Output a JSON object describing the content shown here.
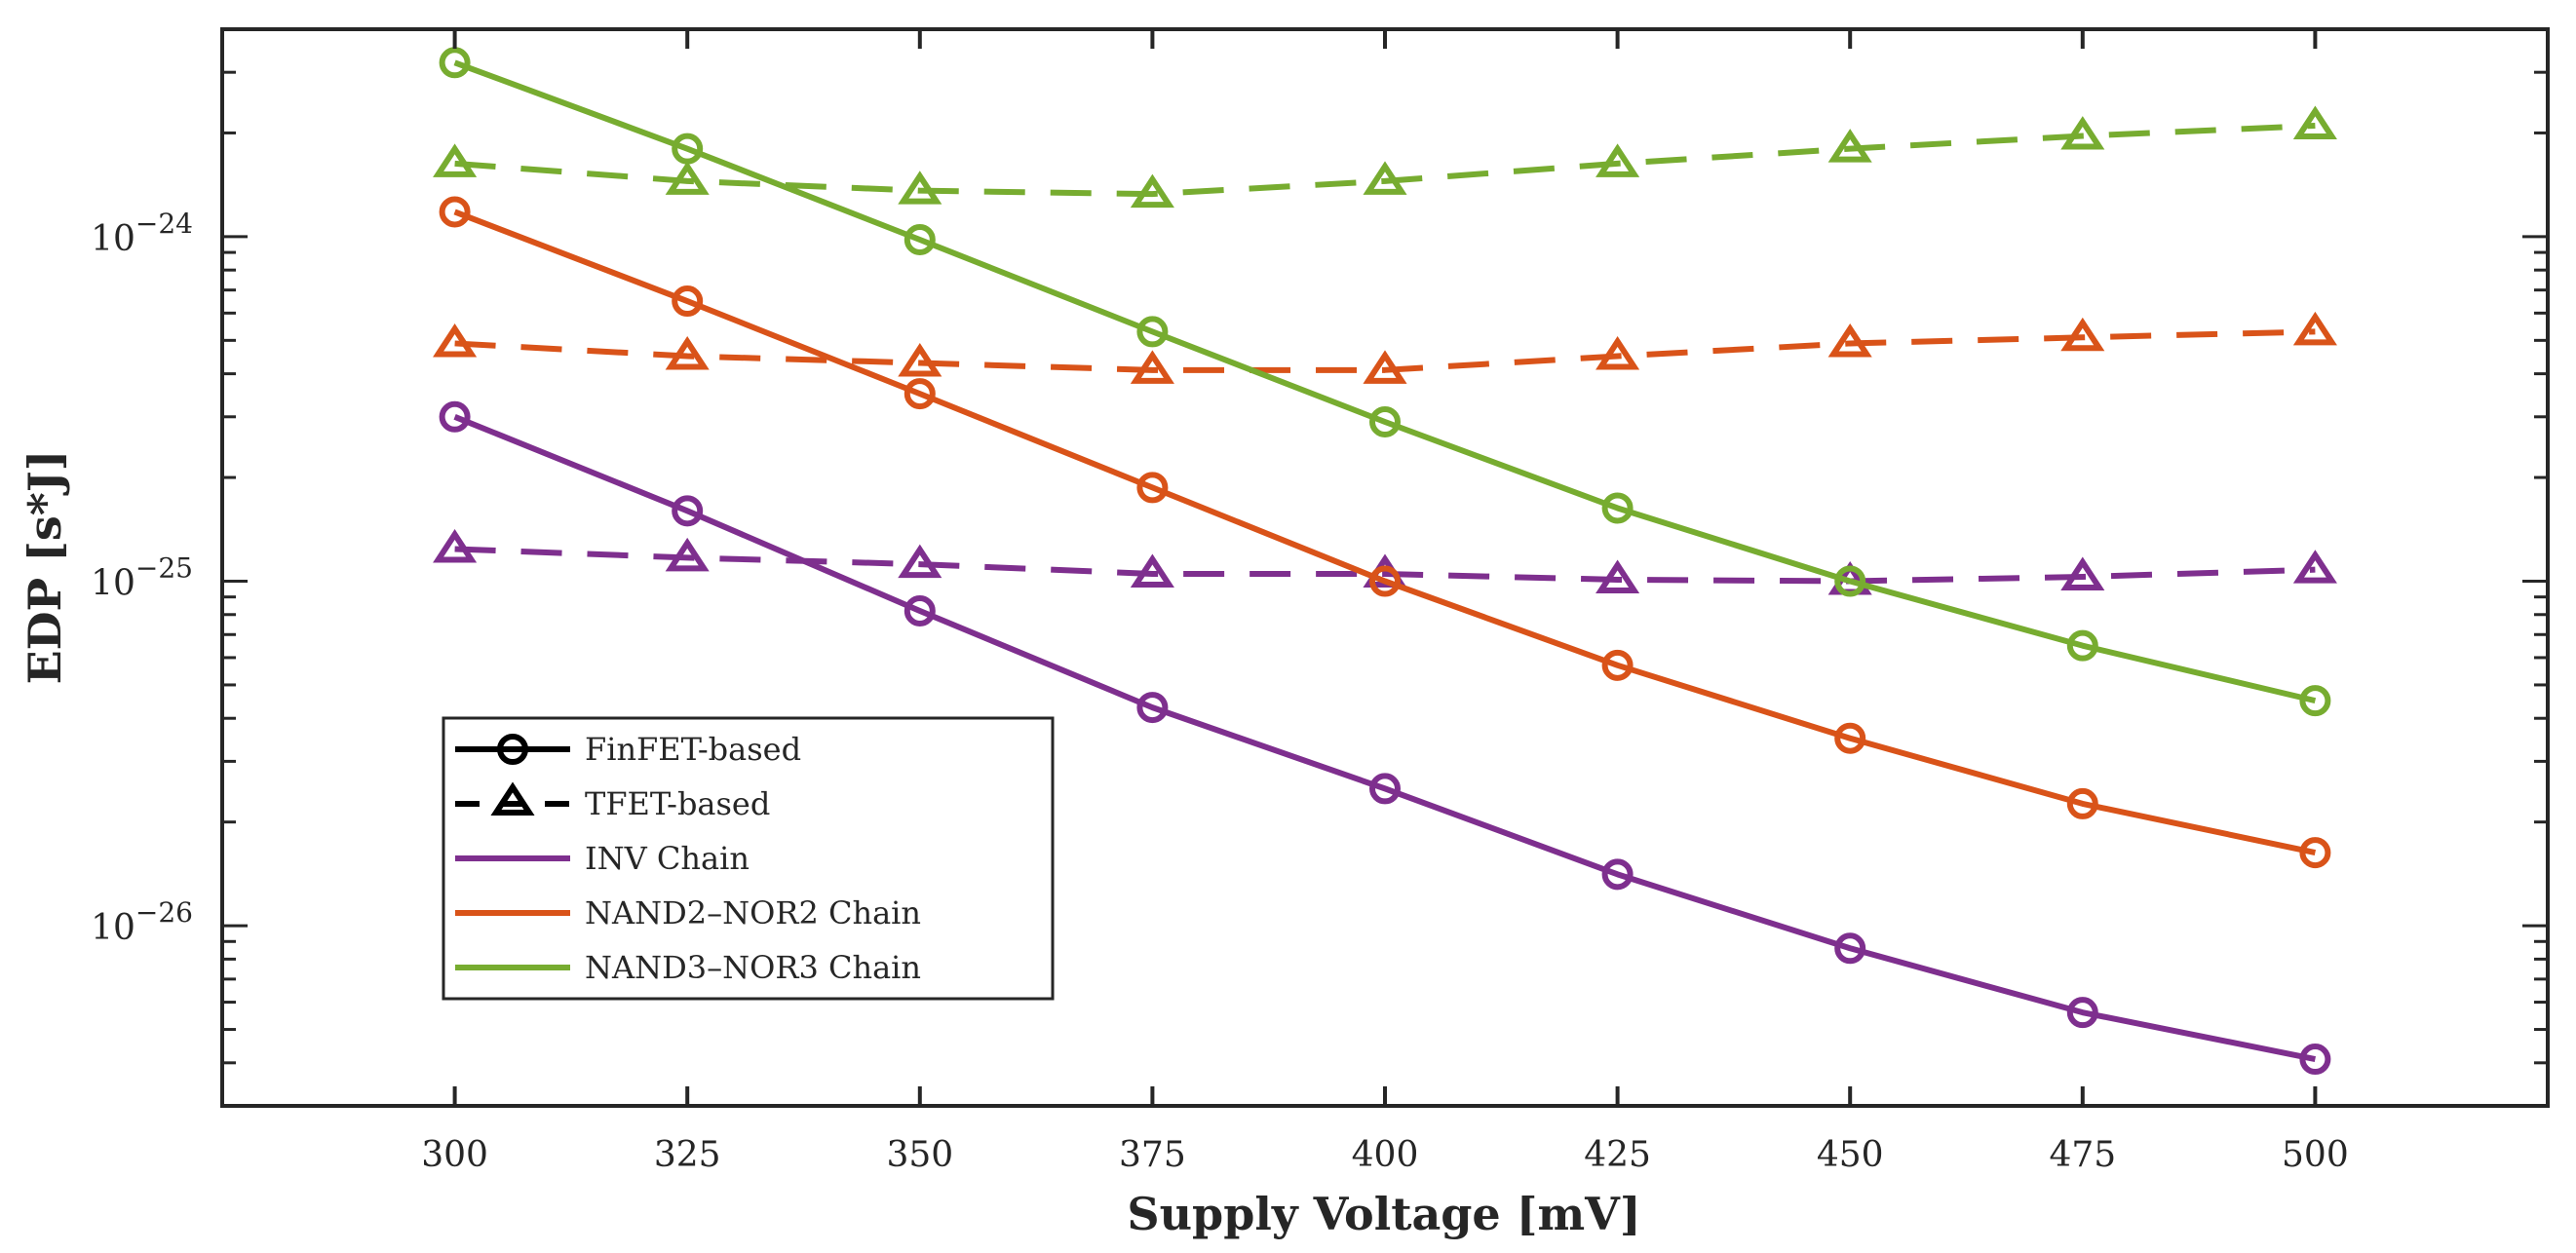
{
  "chart_data": {
    "type": "line",
    "title": "",
    "xlabel": "Supply Voltage [mV]",
    "ylabel": "EDP [s*J]",
    "xlim": [
      275,
      525
    ],
    "ylim": [
      3e-27,
      4e-24
    ],
    "yscale": "log",
    "grid": false,
    "legend_placement": "bottom-left",
    "x": [
      300,
      325,
      350,
      375,
      400,
      425,
      450,
      475,
      500
    ],
    "x_tick_labels": [
      "300",
      "325",
      "350",
      "375",
      "400",
      "425",
      "450",
      "475",
      "500"
    ],
    "y_ticks": [
      1e-24,
      1e-25,
      1e-26
    ],
    "y_tick_base": "10",
    "y_tick_exponents": [
      "−24",
      "−25",
      "−26"
    ],
    "legend": [
      {
        "label": "FinFET-based",
        "style": "solid",
        "marker": "circle",
        "color": "#000000"
      },
      {
        "label": "TFET-based",
        "style": "dashed",
        "marker": "triangle",
        "color": "#000000"
      },
      {
        "label": "INV Chain",
        "style": "solid",
        "marker": "none",
        "color": "#7E2F8E"
      },
      {
        "label": "NAND2–NOR2 Chain",
        "style": "solid",
        "marker": "none",
        "color": "#D95319"
      },
      {
        "label": "NAND3–NOR3 Chain",
        "style": "solid",
        "marker": "none",
        "color": "#77AC30"
      }
    ],
    "series": [
      {
        "name": "INV Chain FinFET-based",
        "color": "#7E2F8E",
        "style": "solid",
        "marker": "circle",
        "values": [
          3e-25,
          1.6e-25,
          8.2e-26,
          4.3e-26,
          2.5e-26,
          1.41e-26,
          8.6e-27,
          5.6e-27,
          4.1e-27
        ]
      },
      {
        "name": "NAND2–NOR2 Chain FinFET-based",
        "color": "#D95319",
        "style": "solid",
        "marker": "circle",
        "values": [
          1.18e-24,
          6.5e-25,
          3.5e-25,
          1.87e-25,
          1e-25,
          5.7e-26,
          3.5e-26,
          2.26e-26,
          1.63e-26
        ]
      },
      {
        "name": "NAND3–NOR3 Chain FinFET-based",
        "color": "#77AC30",
        "style": "solid",
        "marker": "circle",
        "values": [
          3.2e-24,
          1.8e-24,
          9.8e-25,
          5.3e-25,
          2.9e-25,
          1.63e-25,
          1e-25,
          6.5e-26,
          4.5e-26
        ]
      },
      {
        "name": "INV Chain TFET-based",
        "color": "#7E2F8E",
        "style": "dashed",
        "marker": "triangle",
        "values": [
          1.24e-25,
          1.17e-25,
          1.12e-25,
          1.05e-25,
          1.05e-25,
          1.01e-25,
          1e-25,
          1.03e-25,
          1.08e-25
        ]
      },
      {
        "name": "NAND2–NOR2 Chain TFET-based",
        "color": "#D95319",
        "style": "dashed",
        "marker": "triangle",
        "values": [
          4.9e-25,
          4.5e-25,
          4.3e-25,
          4.1e-25,
          4.1e-25,
          4.5e-25,
          4.9e-25,
          5.1e-25,
          5.3e-25
        ]
      },
      {
        "name": "NAND3–NOR3 Chain TFET-based",
        "color": "#77AC30",
        "style": "dashed",
        "marker": "triangle",
        "values": [
          1.63e-24,
          1.45e-24,
          1.36e-24,
          1.33e-24,
          1.45e-24,
          1.63e-24,
          1.8e-24,
          1.96e-24,
          2.1e-24
        ]
      }
    ]
  }
}
